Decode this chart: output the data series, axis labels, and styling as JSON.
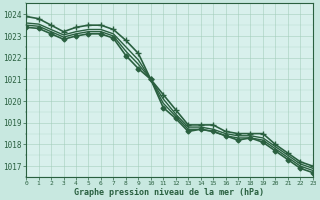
{
  "title": "Graphe pression niveau de la mer (hPa)",
  "background_color": "#c8e8e0",
  "plot_bg_color": "#d8f0ec",
  "grid_color": "#a0ccb8",
  "line_color": "#2a6040",
  "xlim": [
    0,
    23
  ],
  "ylim": [
    1016.5,
    1024.5
  ],
  "yticks": [
    1017,
    1018,
    1019,
    1020,
    1021,
    1022,
    1023,
    1024
  ],
  "xticks": [
    0,
    1,
    2,
    3,
    4,
    5,
    6,
    7,
    8,
    9,
    10,
    11,
    12,
    13,
    14,
    15,
    16,
    17,
    18,
    19,
    20,
    21,
    22,
    23
  ],
  "series": [
    {
      "x": [
        0,
        1,
        2,
        3,
        4,
        5,
        6,
        7,
        8,
        9,
        10,
        11,
        12,
        13,
        14,
        15,
        16,
        17,
        18,
        19,
        20,
        21,
        22,
        23
      ],
      "y": [
        1023.9,
        1023.8,
        1023.5,
        1023.2,
        1023.4,
        1023.5,
        1023.5,
        1023.3,
        1022.8,
        1022.2,
        1021.0,
        1020.3,
        1019.6,
        1018.9,
        1018.9,
        1018.9,
        1018.6,
        1018.5,
        1018.5,
        1018.5,
        1018.0,
        1017.6,
        1017.2,
        1017.0
      ],
      "marker": "+",
      "linewidth": 1.2,
      "markersize": 4
    },
    {
      "x": [
        0,
        1,
        2,
        3,
        4,
        5,
        6,
        7,
        8,
        9,
        10,
        11,
        12,
        13,
        14,
        15,
        16,
        17,
        18,
        19,
        20,
        21,
        22,
        23
      ],
      "y": [
        1023.6,
        1023.55,
        1023.3,
        1023.05,
        1023.2,
        1023.3,
        1023.3,
        1023.1,
        1022.5,
        1021.9,
        1021.0,
        1020.1,
        1019.4,
        1018.8,
        1018.8,
        1018.7,
        1018.5,
        1018.4,
        1018.4,
        1018.3,
        1017.9,
        1017.5,
        1017.1,
        1016.9
      ],
      "marker": null,
      "linewidth": 1.0,
      "markersize": 0
    },
    {
      "x": [
        0,
        1,
        2,
        3,
        4,
        5,
        6,
        7,
        8,
        9,
        10,
        11,
        12,
        13,
        14,
        15,
        16,
        17,
        18,
        19,
        20,
        21,
        22,
        23
      ],
      "y": [
        1023.5,
        1023.45,
        1023.2,
        1022.95,
        1023.1,
        1023.2,
        1023.2,
        1023.0,
        1022.3,
        1021.7,
        1021.0,
        1019.9,
        1019.3,
        1018.7,
        1018.7,
        1018.6,
        1018.4,
        1018.3,
        1018.3,
        1018.2,
        1017.8,
        1017.4,
        1017.0,
        1016.8
      ],
      "marker": null,
      "linewidth": 1.0,
      "markersize": 0
    },
    {
      "x": [
        0,
        1,
        2,
        3,
        4,
        5,
        6,
        7,
        8,
        9,
        10,
        11,
        12,
        13,
        14,
        15,
        16,
        17,
        18,
        19,
        20,
        21,
        22,
        23
      ],
      "y": [
        1023.4,
        1023.35,
        1023.1,
        1022.85,
        1023.0,
        1023.1,
        1023.1,
        1022.9,
        1022.1,
        1021.5,
        1021.0,
        1019.7,
        1019.2,
        1018.6,
        1018.7,
        1018.6,
        1018.4,
        1018.2,
        1018.3,
        1018.1,
        1017.7,
        1017.3,
        1016.9,
        1016.7
      ],
      "marker": "D",
      "linewidth": 1.2,
      "markersize": 2.5
    }
  ]
}
